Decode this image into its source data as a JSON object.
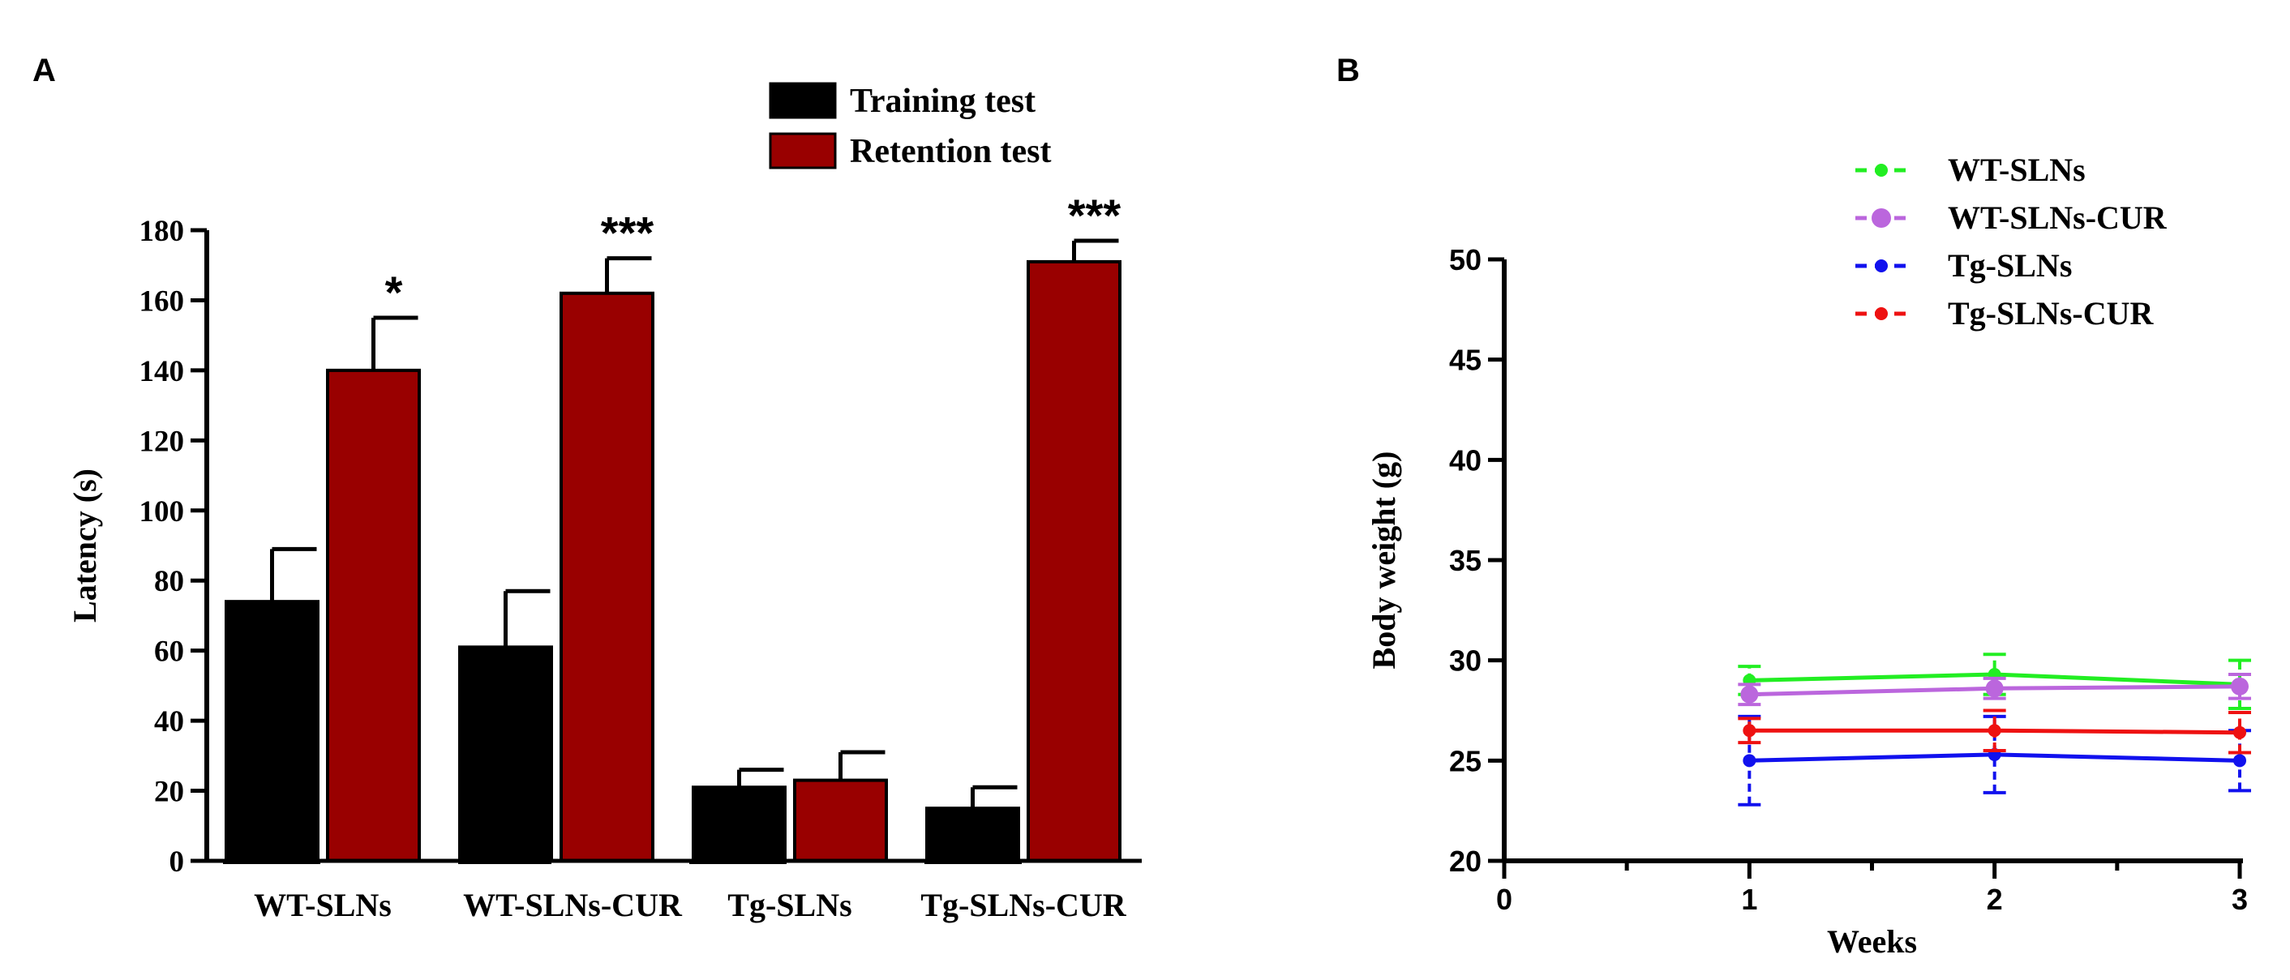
{
  "chart_data": [
    {
      "panel": "A",
      "type": "bar",
      "categories": [
        "WT-SLNs",
        "WT-SLNs-CUR",
        "Tg-SLNs",
        "Tg-SLNs-CUR"
      ],
      "ylabel": "Latency (s)",
      "xlabel": "",
      "ylim": [
        0,
        180
      ],
      "yticks": [
        0,
        20,
        40,
        60,
        80,
        100,
        120,
        140,
        160,
        180
      ],
      "legend_position": "top-right",
      "series": [
        {
          "name": "Training test",
          "color": "#000000",
          "values": [
            74,
            61,
            21,
            15
          ],
          "errors": [
            15,
            16,
            5,
            6
          ]
        },
        {
          "name": "Retention test",
          "color": "#990000",
          "values": [
            140,
            162,
            23,
            171
          ],
          "errors": [
            15,
            10,
            8,
            6
          ]
        }
      ],
      "significance": [
        "*",
        "***",
        "",
        "***"
      ]
    },
    {
      "panel": "B",
      "type": "line",
      "xlabel": "Weeks",
      "ylabel": "Body weight (g)",
      "xlim": [
        0,
        3
      ],
      "ylim": [
        20,
        50
      ],
      "xticks": [
        0,
        1,
        2,
        3
      ],
      "yticks": [
        20,
        25,
        30,
        35,
        40,
        45,
        50
      ],
      "legend_position": "top-right",
      "x": [
        1,
        2,
        3
      ],
      "series": [
        {
          "name": "WT-SLNs",
          "color": "#22ee22",
          "values": [
            29.0,
            29.3,
            28.8
          ],
          "errors": [
            0.7,
            1.0,
            1.2
          ]
        },
        {
          "name": "WT-SLNs-CUR",
          "color": "#bb66dd",
          "values": [
            28.3,
            28.6,
            28.7
          ],
          "errors": [
            0.5,
            0.5,
            0.6
          ]
        },
        {
          "name": "Tg-SLNs",
          "color": "#1111ee",
          "values": [
            25.0,
            25.3,
            25.0
          ],
          "errors": [
            2.2,
            1.9,
            1.5
          ]
        },
        {
          "name": "Tg-SLNs-CUR",
          "color": "#ee1111",
          "values": [
            26.5,
            26.5,
            26.4
          ],
          "errors": [
            0.6,
            1.0,
            1.0
          ]
        }
      ]
    }
  ],
  "panels": {
    "a_label": "A",
    "b_label": "B"
  }
}
